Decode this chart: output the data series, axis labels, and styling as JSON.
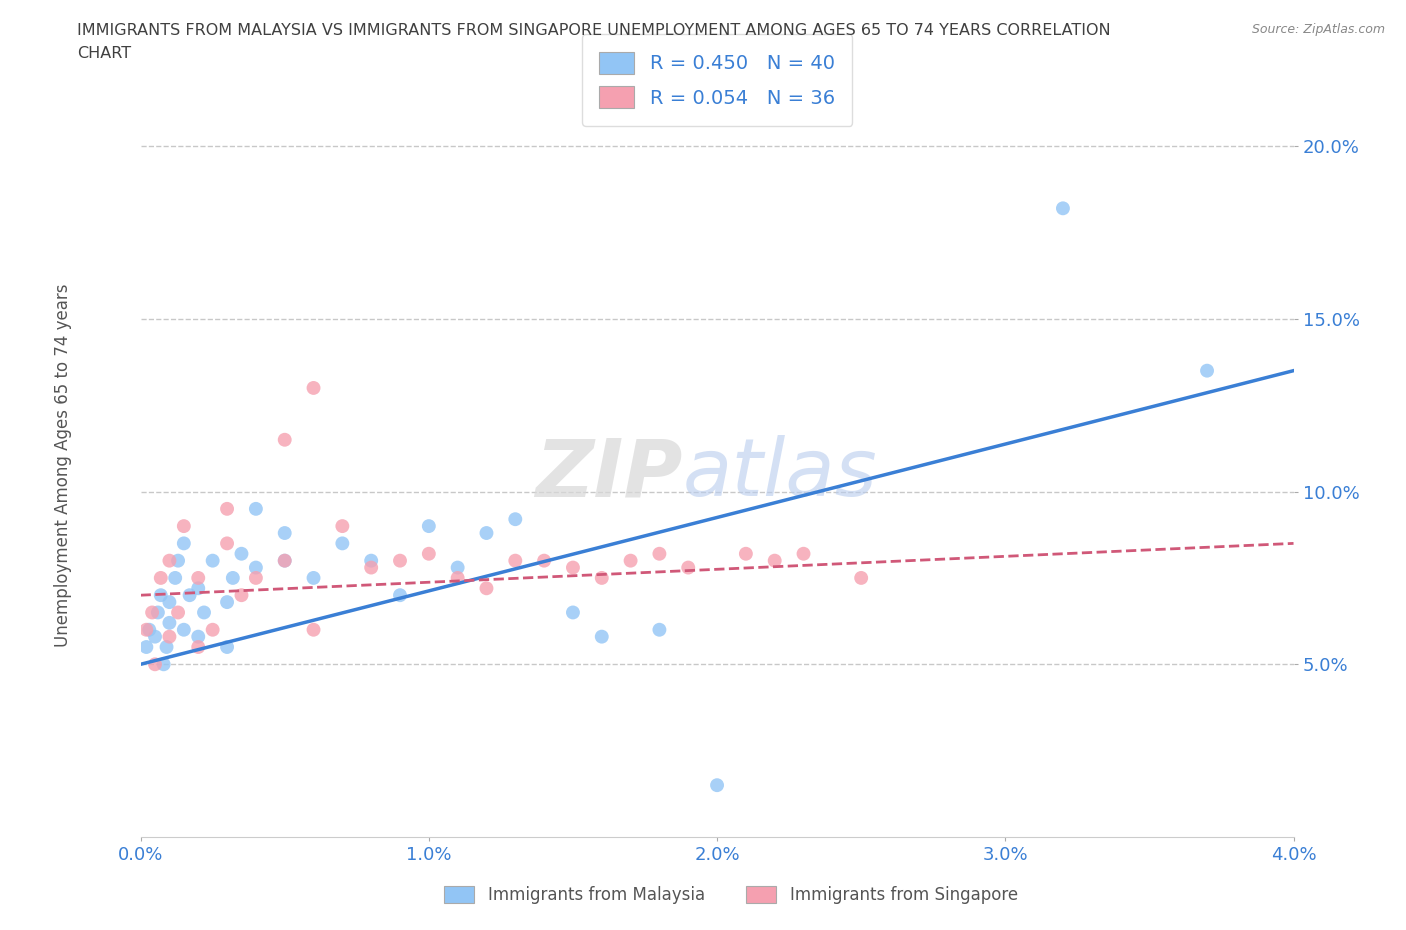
{
  "title_line1": "IMMIGRANTS FROM MALAYSIA VS IMMIGRANTS FROM SINGAPORE UNEMPLOYMENT AMONG AGES 65 TO 74 YEARS CORRELATION",
  "title_line2": "CHART",
  "source": "Source: ZipAtlas.com",
  "ylabel": "Unemployment Among Ages 65 to 74 years",
  "xlim": [
    0.0,
    0.04
  ],
  "ylim": [
    0.0,
    0.21
  ],
  "xticks": [
    0.0,
    0.01,
    0.02,
    0.03,
    0.04
  ],
  "yticks": [
    0.05,
    0.1,
    0.15,
    0.2
  ],
  "xticklabels": [
    "0.0%",
    "1.0%",
    "2.0%",
    "3.0%",
    "4.0%"
  ],
  "yticklabels": [
    "5.0%",
    "10.0%",
    "15.0%",
    "20.0%"
  ],
  "malaysia_color": "#92c5f5",
  "singapore_color": "#f5a0b0",
  "malaysia_R": 0.45,
  "malaysia_N": 40,
  "singapore_R": 0.054,
  "singapore_N": 36,
  "malaysia_x": [
    0.0002,
    0.0003,
    0.0005,
    0.0006,
    0.0007,
    0.0008,
    0.0009,
    0.001,
    0.001,
    0.0012,
    0.0013,
    0.0015,
    0.0015,
    0.0017,
    0.002,
    0.002,
    0.0022,
    0.0025,
    0.003,
    0.003,
    0.0032,
    0.0035,
    0.004,
    0.004,
    0.005,
    0.005,
    0.006,
    0.007,
    0.008,
    0.009,
    0.01,
    0.011,
    0.012,
    0.013,
    0.015,
    0.016,
    0.018,
    0.02,
    0.032,
    0.037
  ],
  "malaysia_y": [
    0.055,
    0.06,
    0.058,
    0.065,
    0.07,
    0.05,
    0.055,
    0.062,
    0.068,
    0.075,
    0.08,
    0.06,
    0.085,
    0.07,
    0.058,
    0.072,
    0.065,
    0.08,
    0.055,
    0.068,
    0.075,
    0.082,
    0.078,
    0.095,
    0.08,
    0.088,
    0.075,
    0.085,
    0.08,
    0.07,
    0.09,
    0.078,
    0.088,
    0.092,
    0.065,
    0.058,
    0.06,
    0.015,
    0.182,
    0.135
  ],
  "singapore_x": [
    0.0002,
    0.0004,
    0.0005,
    0.0007,
    0.001,
    0.001,
    0.0013,
    0.0015,
    0.002,
    0.002,
    0.0025,
    0.003,
    0.003,
    0.0035,
    0.004,
    0.005,
    0.005,
    0.006,
    0.006,
    0.007,
    0.008,
    0.009,
    0.01,
    0.011,
    0.012,
    0.013,
    0.014,
    0.015,
    0.016,
    0.017,
    0.018,
    0.019,
    0.021,
    0.022,
    0.023,
    0.025
  ],
  "singapore_y": [
    0.06,
    0.065,
    0.05,
    0.075,
    0.058,
    0.08,
    0.065,
    0.09,
    0.055,
    0.075,
    0.06,
    0.085,
    0.095,
    0.07,
    0.075,
    0.115,
    0.08,
    0.13,
    0.06,
    0.09,
    0.078,
    0.08,
    0.082,
    0.075,
    0.072,
    0.08,
    0.08,
    0.078,
    0.075,
    0.08,
    0.082,
    0.078,
    0.082,
    0.08,
    0.082,
    0.075
  ],
  "malaysia_line_color": "#3a7fd5",
  "singapore_line_color": "#d05878",
  "watermark_zip": "ZIP",
  "watermark_atlas": "atlas",
  "background_color": "#ffffff",
  "grid_color": "#c8c8c8",
  "title_color": "#404040",
  "axis_color": "#3a7fd5",
  "legend_text_color": "#3a7fd5"
}
